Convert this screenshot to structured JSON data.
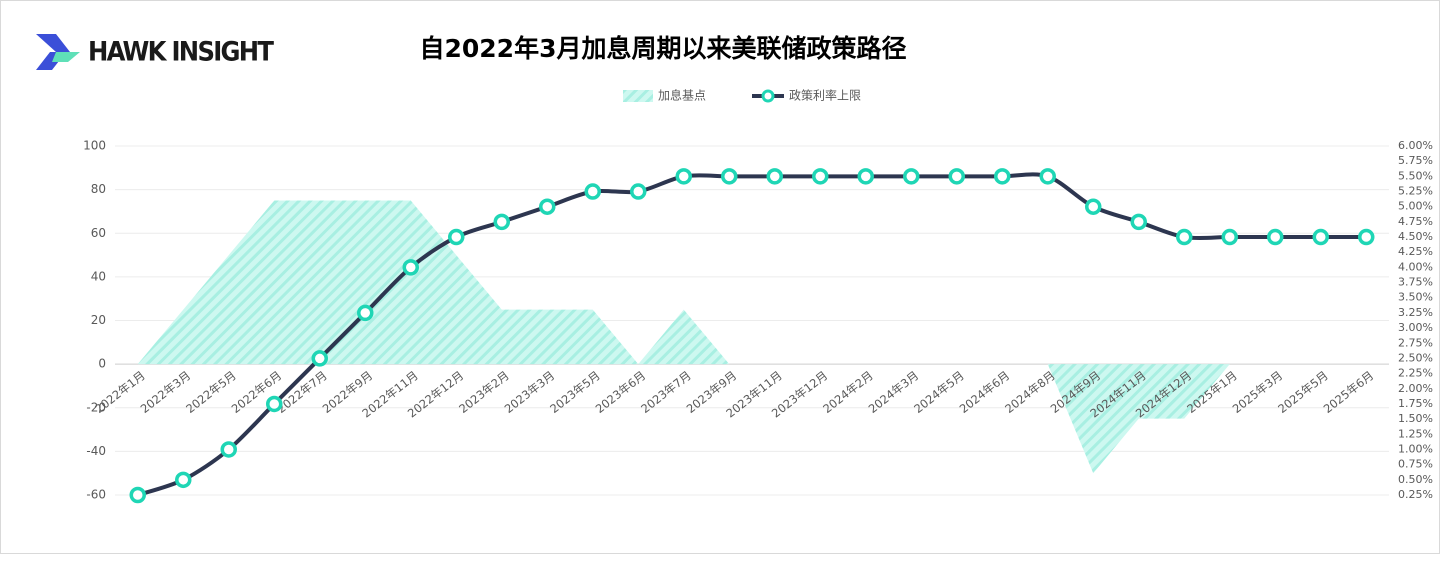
{
  "logo": {
    "text": "HAWK INSIGHT"
  },
  "chart_data": {
    "type": "combo",
    "title": "自2022年3月加息周期以来美联储政策路径",
    "categories": [
      "2022年1月",
      "2022年3月",
      "2022年5月",
      "2022年6月",
      "2022年7月",
      "2022年9月",
      "2022年11月",
      "2022年12月",
      "2023年2月",
      "2023年3月",
      "2023年5月",
      "2023年6月",
      "2023年7月",
      "2023年9月",
      "2023年11月",
      "2023年12月",
      "2024年2月",
      "2024年3月",
      "2024年5月",
      "2024年6月",
      "2024年8月",
      "2024年9月",
      "2024年11月",
      "2024年12月",
      "2025年1月",
      "2025年3月",
      "2025年5月",
      "2025年6月"
    ],
    "series": [
      {
        "name": "加息基点",
        "type": "area",
        "color": "#b5f3e8",
        "values": [
          0,
          25,
          50,
          75,
          75,
          75,
          75,
          50,
          25,
          25,
          25,
          0,
          25,
          0,
          0,
          0,
          0,
          0,
          0,
          0,
          0,
          -50,
          -25,
          -25,
          0,
          0,
          0,
          0
        ]
      },
      {
        "name": "政策利率上限",
        "type": "line",
        "axis": "y2",
        "color": "#2d3650",
        "marker_color": "#1fd6b5",
        "values": [
          0.25,
          0.5,
          1.0,
          1.75,
          2.5,
          3.25,
          4.0,
          4.5,
          4.75,
          5.0,
          5.25,
          5.25,
          5.5,
          5.5,
          5.5,
          5.5,
          5.5,
          5.5,
          5.5,
          5.5,
          5.5,
          5.0,
          4.75,
          4.5,
          4.5,
          4.5,
          4.5,
          4.5
        ]
      }
    ],
    "ylim": [
      -60,
      100
    ],
    "yticks": [
      -60,
      -40,
      -20,
      0,
      20,
      40,
      60,
      80,
      100
    ],
    "y2lim": [
      0.25,
      6.0
    ],
    "y2ticks": [
      {
        "value": 0.25,
        "label": "0.25%"
      },
      {
        "value": 0.5,
        "label": "0.50%"
      },
      {
        "value": 0.75,
        "label": "0.75%"
      },
      {
        "value": 1.0,
        "label": "1.00%"
      },
      {
        "value": 1.25,
        "label": "1.25%"
      },
      {
        "value": 1.5,
        "label": "1.50%"
      },
      {
        "value": 1.75,
        "label": "1.75%"
      },
      {
        "value": 2.0,
        "label": "2.00%"
      },
      {
        "value": 2.25,
        "label": "2.25%"
      },
      {
        "value": 2.5,
        "label": "2.50%"
      },
      {
        "value": 2.75,
        "label": "2.75%"
      },
      {
        "value": 3.0,
        "label": "3.00%"
      },
      {
        "value": 3.25,
        "label": "3.25%"
      },
      {
        "value": 3.5,
        "label": "3.50%"
      },
      {
        "value": 3.75,
        "label": "3.75%"
      },
      {
        "value": 4.0,
        "label": "4.00%"
      },
      {
        "value": 4.25,
        "label": "4.25%"
      },
      {
        "value": 4.5,
        "label": "4.50%"
      },
      {
        "value": 4.75,
        "label": "4.75%"
      },
      {
        "value": 5.0,
        "label": "5.00%"
      },
      {
        "value": 5.25,
        "label": "5.25%"
      },
      {
        "value": 5.5,
        "label": "5.50%"
      },
      {
        "value": 5.75,
        "label": "5.75%"
      },
      {
        "value": 6.0,
        "label": "6.00%"
      }
    ],
    "grid": true,
    "legend": "top"
  }
}
